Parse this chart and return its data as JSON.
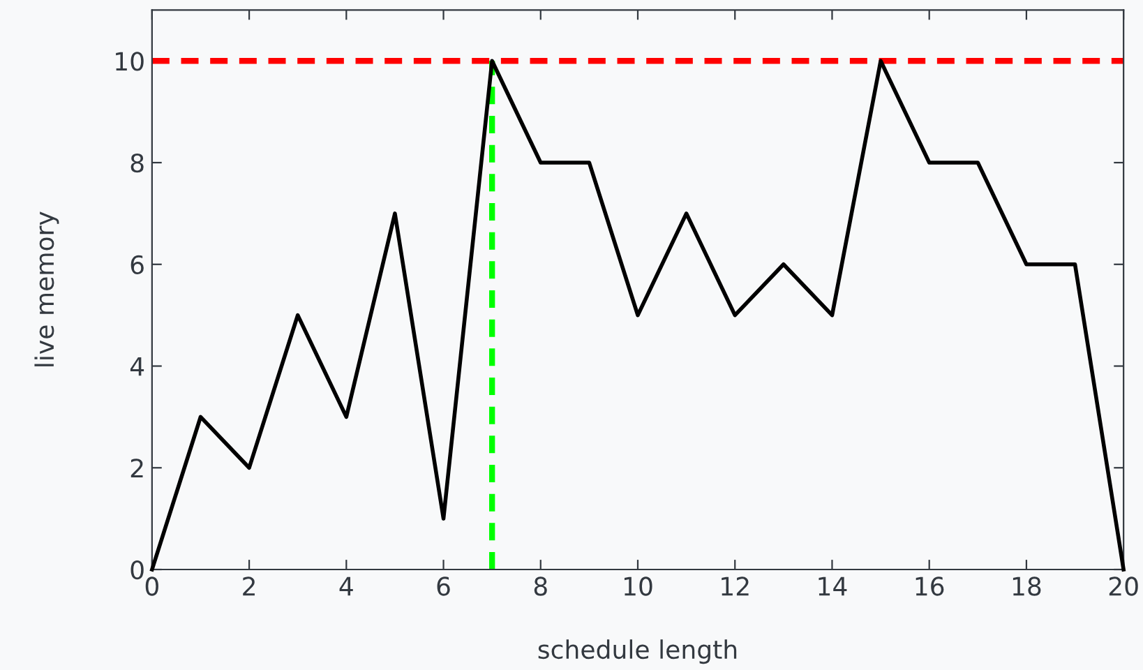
{
  "chart_data": {
    "type": "line",
    "xlabel": "schedule length",
    "ylabel": "live memory",
    "x": [
      0,
      1,
      2,
      3,
      4,
      5,
      6,
      7,
      8,
      9,
      10,
      11,
      12,
      13,
      14,
      15,
      16,
      17,
      18,
      19,
      20
    ],
    "series": [
      {
        "color": "#000000",
        "values": [
          0,
          3,
          2,
          5,
          3,
          7,
          1,
          10,
          8,
          8,
          5,
          7,
          5,
          6,
          5,
          10,
          8,
          8,
          6,
          6,
          0
        ]
      }
    ],
    "xlim": [
      0,
      20
    ],
    "ylim": [
      0,
      11
    ],
    "xticks": [
      0,
      2,
      4,
      6,
      8,
      10,
      12,
      14,
      16,
      18,
      20
    ],
    "yticks": [
      0,
      2,
      4,
      6,
      8,
      10
    ],
    "ref_lines": [
      {
        "axis": "y",
        "value": 10,
        "color": "#ff0000",
        "line_style": "dashed"
      },
      {
        "axis": "x",
        "value": 7,
        "color": "#00ff00",
        "line_style": "dashed"
      }
    ],
    "grid": false,
    "legend": false,
    "marker": "none",
    "line_style": "solid"
  }
}
